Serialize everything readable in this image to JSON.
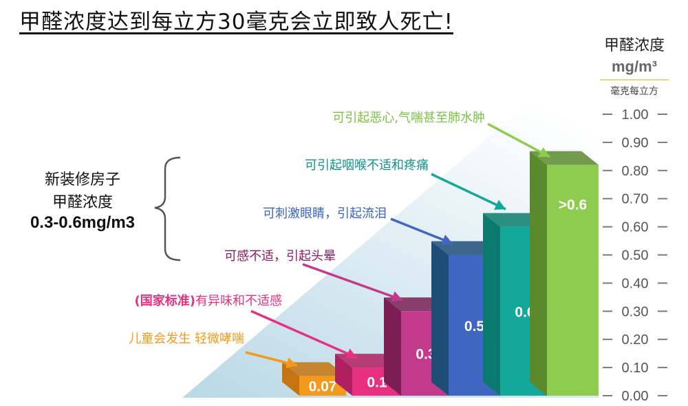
{
  "title": "甲醛浓度达到每立方30毫克会立即致人死亡!",
  "side_note": {
    "line1": "新装修房子",
    "line2": "甲醛浓度",
    "line3": "0.3-0.6mg/m3"
  },
  "colors": {
    "axis": "#7a7a7a",
    "gradient": "#cfe6ee"
  },
  "chart_data": {
    "type": "bar",
    "y_axis": {
      "title": "甲醛浓度",
      "unit": "mg/m³",
      "subtitle": "毫克每立方",
      "ylim": [
        0,
        1.0
      ],
      "ticks": [
        "0.00",
        "0.10",
        "0.20",
        "0.30",
        "0.40",
        "0.50",
        "0.60",
        "0.70",
        "0.80",
        "0.90",
        "1.00"
      ],
      "position": "right"
    },
    "bars": [
      {
        "label": "0.07",
        "value": 0.07,
        "color": "#f39a1b",
        "dark": "#c47410",
        "note": "儿童会发生 轻微哮喘",
        "note_color": "#f39a1b",
        "note_prefix": ""
      },
      {
        "label": "0.1",
        "value": 0.1,
        "color": "#e7307f",
        "dark": "#b0205f",
        "note": "有异味和不适感",
        "note_color": "#e7307f",
        "note_prefix": "(国家标准)"
      },
      {
        "label": "0.3",
        "value": 0.3,
        "color": "#c23a8c",
        "dark": "#7a1e55",
        "note": "可感不适，引起头晕",
        "note_color": "#8a1a5e",
        "note_prefix": ""
      },
      {
        "label": "0.5",
        "value": 0.5,
        "color": "#3f66c0",
        "dark": "#1e4e78",
        "note": "可刺激眼睛，引起流泪",
        "note_color": "#3a63c4",
        "note_prefix": ""
      },
      {
        "label": "0.6",
        "value": 0.6,
        "color": "#13a89a",
        "dark": "#0a7a6e",
        "note": "可引起咽喉不适和疼痛",
        "note_color": "#10928a",
        "note_prefix": ""
      },
      {
        "label": ">0.6",
        "value": 0.82,
        "color": "#8dcc4e",
        "dark": "#5a8a2c",
        "note": "可引起恶心,气喘甚至肺水肿",
        "note_color": "#7ac242",
        "note_prefix": ""
      }
    ]
  }
}
